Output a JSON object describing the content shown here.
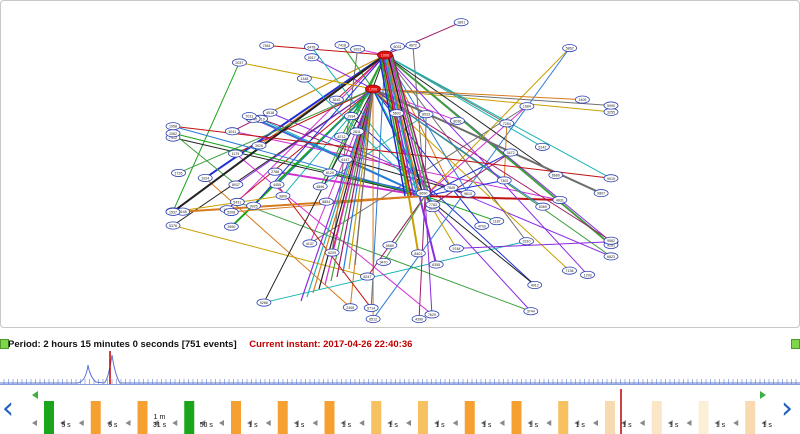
{
  "graph": {
    "highlighted_nodes": [
      "1000",
      "1000"
    ],
    "node_labels": [
      "1024",
      "1187",
      "1352",
      "2053",
      "2219",
      "2405",
      "2611",
      "2788",
      "2934",
      "3041",
      "3128",
      "3255",
      "3310",
      "3472",
      "3590",
      "3615",
      "3744",
      "3809",
      "3926",
      "4012",
      "4137",
      "4261",
      "4390",
      "4455",
      "4518",
      "4672",
      "4703",
      "4896",
      "4931",
      "5017",
      "5142",
      "5208",
      "5376",
      "5431",
      "5589",
      "5603",
      "5714",
      "5862",
      "5990",
      "6031",
      "6147",
      "6209",
      "6355",
      "6478",
      "6512",
      "6689",
      "6740",
      "6823",
      "6905",
      "7011",
      "7136",
      "7254",
      "7302",
      "7418",
      "7561",
      "7629",
      "7783",
      "7845",
      "7912",
      "8036",
      "8120",
      "8247",
      "8369",
      "8401",
      "8533",
      "8690",
      "8712",
      "8854",
      "8937",
      "9015",
      "9148",
      "9266",
      "9331",
      "9470",
      "9582",
      "9613",
      "9748",
      "9807",
      "9925",
      "1062",
      "1179",
      "1293",
      "1348",
      "1405",
      "1537",
      "1684",
      "1726",
      "1891",
      "1958",
      "2037"
    ]
  },
  "info": {
    "period": "Period: 2 hours 15 minutes 0 seconds [751 events]",
    "instant": "Current instant: 2017-04-26 22:40:36"
  },
  "timeline": {
    "prev_icon": "chevron-left-icon",
    "next_icon": "chevron-right-icon",
    "steps": [
      {
        "label": "5 s",
        "color": "#1aa51a"
      },
      {
        "label": "6 s",
        "color": "#f5a030"
      },
      {
        "label": "1 m\n31 s",
        "color": "#f5a030"
      },
      {
        "label": "50 s",
        "color": "#1aa51a"
      },
      {
        "label": "1 s",
        "color": "#f5a030"
      },
      {
        "label": "1 s",
        "color": "#f5a030"
      },
      {
        "label": "1 s",
        "color": "#f5a030"
      },
      {
        "label": "1 s",
        "color": "#f7c060"
      },
      {
        "label": "1 s",
        "color": "#f7c060"
      },
      {
        "label": "1 s",
        "color": "#f5a030"
      },
      {
        "label": "1 s",
        "color": "#f5a030"
      },
      {
        "label": "1 s",
        "color": "#f7c060"
      },
      {
        "label": "1 s",
        "color": "#f8d9b0"
      },
      {
        "label": "1 s",
        "color": "#fbe6c8"
      },
      {
        "label": "1 s",
        "color": "#fcefd8"
      },
      {
        "label": "1 s",
        "color": "#f8d9b0"
      }
    ]
  },
  "colors": {
    "accent_blue": "#1f5fbf",
    "instant_red": "#c00000",
    "highlight_node": "#e01010",
    "handle_green": "#7fd44a"
  }
}
